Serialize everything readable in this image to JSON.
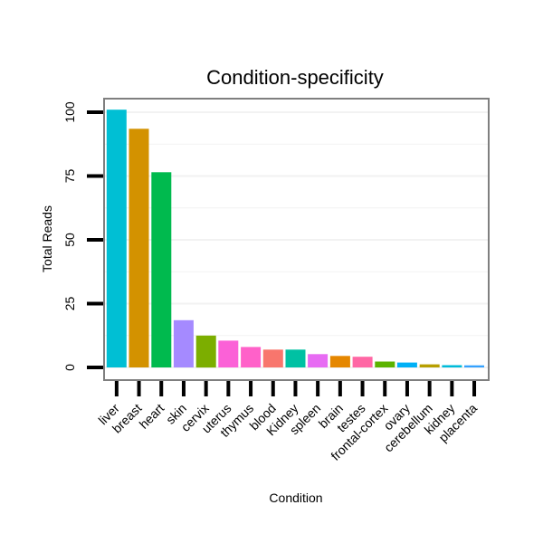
{
  "chart_data": {
    "type": "bar",
    "title": "Condition-specificity",
    "xlabel": "Condition",
    "ylabel": "Total Reads",
    "ylim": [
      -5,
      107
    ],
    "yticks": [
      0,
      25,
      50,
      75,
      100
    ],
    "grid": true,
    "legend": "none",
    "categories": [
      "liver",
      "breast",
      "heart",
      "skin",
      "cervix",
      "uterus",
      "thymus",
      "blood",
      "Kidney",
      "spleen",
      "brain",
      "testes",
      "frontal-cortex",
      "ovary",
      "cerebellum",
      "kidney",
      "placenta"
    ],
    "values": [
      101,
      93.5,
      76.5,
      18.5,
      12.5,
      10.5,
      8,
      7,
      7,
      5.2,
      4.5,
      4.2,
      2.3,
      1.9,
      1.2,
      0.9,
      0.8
    ],
    "colors": [
      "#00BFD4",
      "#D39200",
      "#00BA4E",
      "#A58AFF",
      "#7CAE00",
      "#FB61D7",
      "#FF61C9",
      "#F8766D",
      "#00C1A3",
      "#E76BF3",
      "#E58700",
      "#FF67A4",
      "#5BB300",
      "#00B0F6",
      "#B79F00",
      "#00BBDA",
      "#35A2FF"
    ]
  }
}
